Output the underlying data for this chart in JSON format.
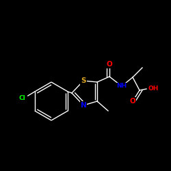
{
  "background_color": "#000000",
  "atom_colors": {
    "S": "#DAA520",
    "N": "#0000FF",
    "O": "#FF0000",
    "Cl": "#00FF00",
    "C": "#FFFFFF",
    "H": "#FFFFFF"
  },
  "bond_color": "#FFFFFF",
  "bond_lw": 1.0,
  "font_size_atom": 7.5,
  "font_size_small": 6.5,
  "scale": 1.0
}
